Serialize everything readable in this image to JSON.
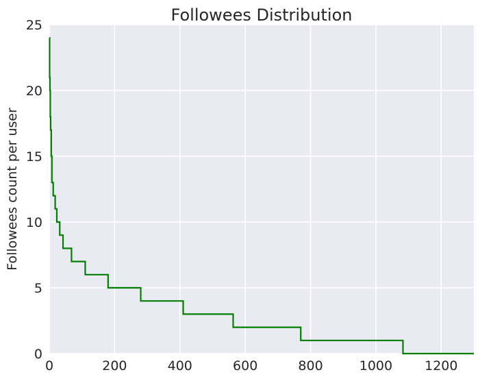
{
  "chart_data": {
    "type": "line",
    "title": "Followees Distribution",
    "xlabel": "",
    "ylabel": "Followees count per user",
    "xlim": [
      0,
      1300
    ],
    "ylim": [
      0,
      25
    ],
    "x_ticks": [
      0,
      200,
      400,
      600,
      800,
      1000,
      1200
    ],
    "y_ticks": [
      0,
      5,
      10,
      15,
      20,
      25
    ],
    "x_tick_labels": [
      "0",
      "200",
      "400",
      "600",
      "800",
      "1000",
      "1200"
    ],
    "y_tick_labels": [
      "0",
      "5",
      "10",
      "15",
      "20",
      "25"
    ],
    "grid": true,
    "series": [
      {
        "color": "#008000",
        "step": true,
        "x": [
          0,
          1,
          2,
          3,
          4,
          6,
          8,
          12,
          18,
          23,
          32,
          42,
          68,
          110,
          180,
          280,
          410,
          563,
          770,
          1083,
          1300
        ],
        "y": [
          24,
          21,
          20,
          18,
          17,
          15,
          13,
          12,
          11,
          10,
          9,
          8,
          7,
          6,
          5,
          4,
          3,
          2,
          1,
          0,
          0
        ]
      }
    ]
  },
  "colors": {
    "plot_background": "#eaeaf2",
    "grid": "#ffffff",
    "line": "#008000"
  }
}
